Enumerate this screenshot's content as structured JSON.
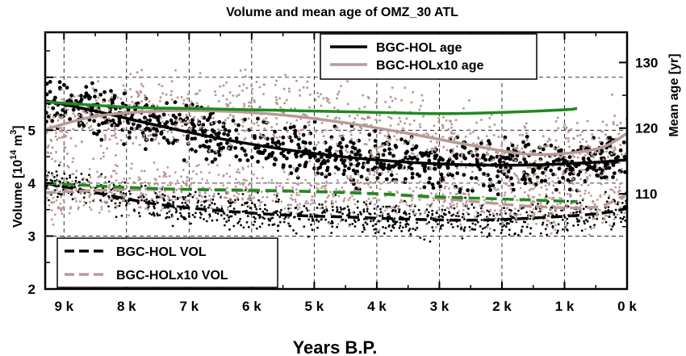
{
  "chart_data": {
    "type": "scatter",
    "title": "Volume and mean age of OMZ_30 ATL",
    "xlabel": "Years B.P.",
    "ylabel_left_prefix": "Volume [10",
    "ylabel_left_exp": "14",
    "ylabel_left_mid": " m",
    "ylabel_left_exp2": "3",
    "ylabel_left_suffix": "]",
    "ylabel_right": "Mean age [yr]",
    "x_range": [
      9.3,
      0
    ],
    "x_ticks": [
      {
        "value": 9,
        "label": "9 k"
      },
      {
        "value": 8,
        "label": "8 k"
      },
      {
        "value": 7,
        "label": "7 k"
      },
      {
        "value": 6,
        "label": "6 k"
      },
      {
        "value": 5,
        "label": "5 k"
      },
      {
        "value": 4,
        "label": "4 k"
      },
      {
        "value": 3,
        "label": "3 k"
      },
      {
        "value": 2,
        "label": "2 k"
      },
      {
        "value": 1,
        "label": "1 k"
      },
      {
        "value": 0,
        "label": "0 k"
      }
    ],
    "y_left_range": [
      2,
      6.85
    ],
    "y_left_ticks": [
      {
        "value": 2,
        "label": "2"
      },
      {
        "value": 3,
        "label": "3"
      },
      {
        "value": 4,
        "label": "4"
      },
      {
        "value": 5,
        "label": "5"
      }
    ],
    "y_right_range": [
      95.5,
      134.6
    ],
    "y_right_ticks": [
      {
        "value": 110,
        "label": "110"
      },
      {
        "value": 120,
        "label": "120"
      },
      {
        "value": 130,
        "label": "130"
      }
    ],
    "grid": true,
    "legend_top": {
      "placement": "top-right",
      "entries": [
        {
          "label": "BGC-HOL age",
          "color": "#000000",
          "dash": "solid"
        },
        {
          "label": "BGC-HOLx10 age",
          "color": "#b89a98",
          "dash": "solid"
        }
      ]
    },
    "legend_bottom": {
      "placement": "bottom-left",
      "entries": [
        {
          "label": "BGC-HOL VOL",
          "color": "#000000",
          "dash": "dashed"
        },
        {
          "label": "BGC-HOLx10 VOL",
          "color": "#b89a98",
          "dash": "dashed"
        }
      ]
    },
    "series": [
      {
        "name": "BGC-HOL age",
        "axis": "right",
        "style": "solid",
        "color": "#000000",
        "x": [
          9.3,
          8.5,
          7.5,
          6.5,
          5.5,
          4.5,
          3.5,
          2.5,
          1.5,
          0.5,
          0
        ],
        "y": [
          124.2,
          122.6,
          120.4,
          118.4,
          116.8,
          115.6,
          114.8,
          114.4,
          114.4,
          114.8,
          115.2
        ]
      },
      {
        "name": "BGC-HOLx10 age",
        "axis": "right",
        "style": "solid",
        "color": "#b89a98",
        "x": [
          9.3,
          8.5,
          7.5,
          6.5,
          5.5,
          4.5,
          3.5,
          2.5,
          1.5,
          0.5,
          0
        ],
        "y": [
          119.8,
          121.8,
          122.6,
          122.6,
          122.0,
          120.8,
          119.2,
          117.4,
          116.0,
          116.8,
          119.2
        ]
      },
      {
        "name": "",
        "axis": "right",
        "style": "solid",
        "color": "#1f8a1f",
        "x": [
          9.3,
          8.0,
          7.0,
          6.0,
          5.0,
          4.0,
          3.0,
          2.0,
          1.0,
          0.8
        ],
        "y": [
          124.0,
          123.2,
          123.0,
          122.8,
          122.6,
          122.4,
          122.2,
          122.4,
          122.8,
          123.0
        ]
      },
      {
        "name": "BGC-HOL VOL",
        "axis": "left",
        "style": "dashed",
        "color": "#000000",
        "x": [
          9.3,
          8.5,
          7.5,
          6.5,
          5.5,
          4.5,
          3.5,
          2.5,
          1.5,
          0.5,
          0
        ],
        "y": [
          4.0,
          3.82,
          3.6,
          3.48,
          3.4,
          3.36,
          3.32,
          3.3,
          3.34,
          3.42,
          3.52
        ]
      },
      {
        "name": "BGC-HOLx10 VOL",
        "axis": "left",
        "style": "dashed",
        "color": "#b89a98",
        "x": [
          9.3,
          8.5,
          7.5,
          6.5,
          5.5,
          4.5,
          3.5,
          2.5,
          1.5,
          0.5,
          0
        ],
        "y": [
          3.82,
          3.86,
          3.88,
          3.88,
          3.86,
          3.82,
          3.76,
          3.66,
          3.56,
          3.55,
          3.8
        ]
      },
      {
        "name": "",
        "axis": "left",
        "style": "dashed",
        "color": "#1f8a1f",
        "x": [
          9.3,
          8.0,
          7.0,
          6.0,
          5.0,
          4.0,
          3.0,
          2.0,
          1.0,
          0.8
        ],
        "y": [
          4.0,
          3.92,
          3.88,
          3.86,
          3.84,
          3.8,
          3.74,
          3.7,
          3.66,
          3.65
        ]
      }
    ],
    "scatter_clouds": [
      {
        "follows": "BGC-HOL age",
        "color": "#000000",
        "radius": 2.4,
        "spread": 3.2
      },
      {
        "follows": "BGC-HOLx10 age",
        "color": "#b89a98",
        "radius": 1.5,
        "spread": 5.0
      },
      {
        "follows": "BGC-HOL VOL",
        "color": "#000000",
        "radius": 1.4,
        "spread": 0.28
      },
      {
        "follows": "BGC-HOLx10 VOL",
        "color": "#b89a98",
        "radius": 1.4,
        "spread": 0.42
      }
    ]
  }
}
